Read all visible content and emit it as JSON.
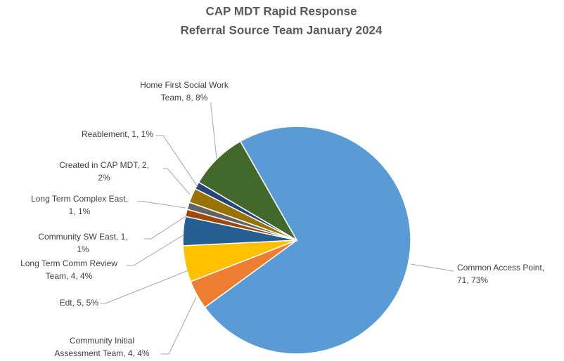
{
  "chart_data": {
    "type": "pie",
    "title": [
      "CAP MDT Rapid Response",
      "Referral Source Team January 2024"
    ],
    "values": [
      71,
      4,
      5,
      4,
      1,
      1,
      2,
      1,
      8
    ],
    "value_labels": [
      [
        "Common Access Point,",
        "71, 73%"
      ],
      [
        "Community Initial",
        "Assessment Team, 4, 4%"
      ],
      [
        "Edt, 5, 5%"
      ],
      [
        "Long Term Comm Review",
        "Team, 4, 4%"
      ],
      [
        "Community SW East, 1,",
        "1%"
      ],
      [
        "Long Term Complex East,",
        "1, 1%"
      ],
      [
        "Created in CAP MDT, 2,",
        "2%"
      ],
      [
        "Reablement, 1, 1%"
      ],
      [
        "Home First Social Work",
        "Team, 8, 8%"
      ]
    ],
    "colors": [
      "#5b9bd5",
      "#ed7d31",
      "#ffc000",
      "#255e91",
      "#9e480e",
      "#636363",
      "#997300",
      "#264478",
      "#43682b"
    ]
  }
}
